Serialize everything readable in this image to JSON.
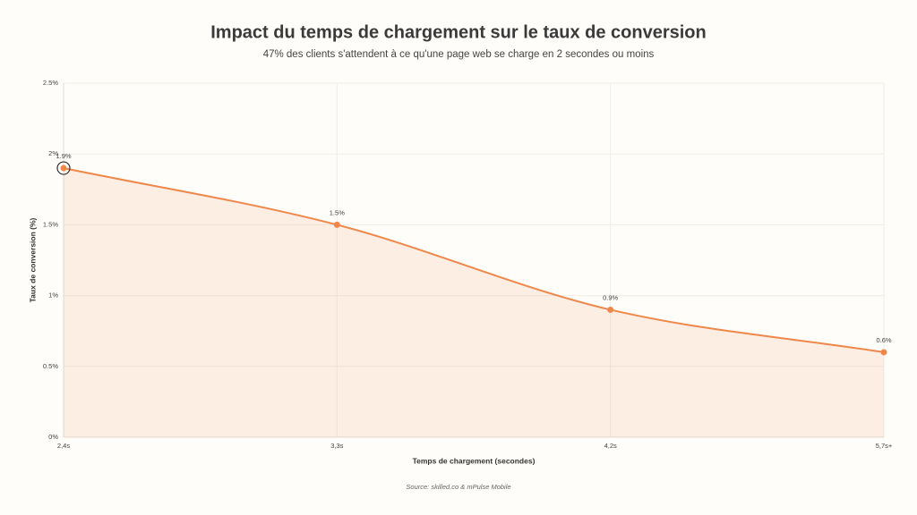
{
  "chart_data": {
    "type": "line",
    "title": "Impact du temps de chargement sur le taux de conversion",
    "subtitle": "47% des clients s'attendent à ce qu'une page web se charge en 2 secondes ou moins",
    "x_label": "Temps de chargement (secondes)",
    "y_label": "Taux de conversion (%)",
    "source": "Source: skilled.co & mPulse Mobile",
    "categories": [
      "2,4s",
      "3,3s",
      "4,2s",
      "5,7s+"
    ],
    "series": [
      {
        "name": "Taux de conversion",
        "color": "#f0874a",
        "values": [
          1.9,
          1.5,
          0.9,
          0.6
        ],
        "value_labels": [
          "1.9%",
          "1.5%",
          "0.9%",
          "0.6%"
        ]
      }
    ],
    "ylim": [
      0,
      2.5
    ],
    "yticks": [
      {
        "value": 0,
        "label": "0%"
      },
      {
        "value": 0.5,
        "label": "0.5%"
      },
      {
        "value": 1,
        "label": "1%"
      },
      {
        "value": 1.5,
        "label": "1.5%"
      },
      {
        "value": 2,
        "label": "2%"
      },
      {
        "value": 2.5,
        "label": "2.5%"
      }
    ],
    "grid": true,
    "area": true
  }
}
